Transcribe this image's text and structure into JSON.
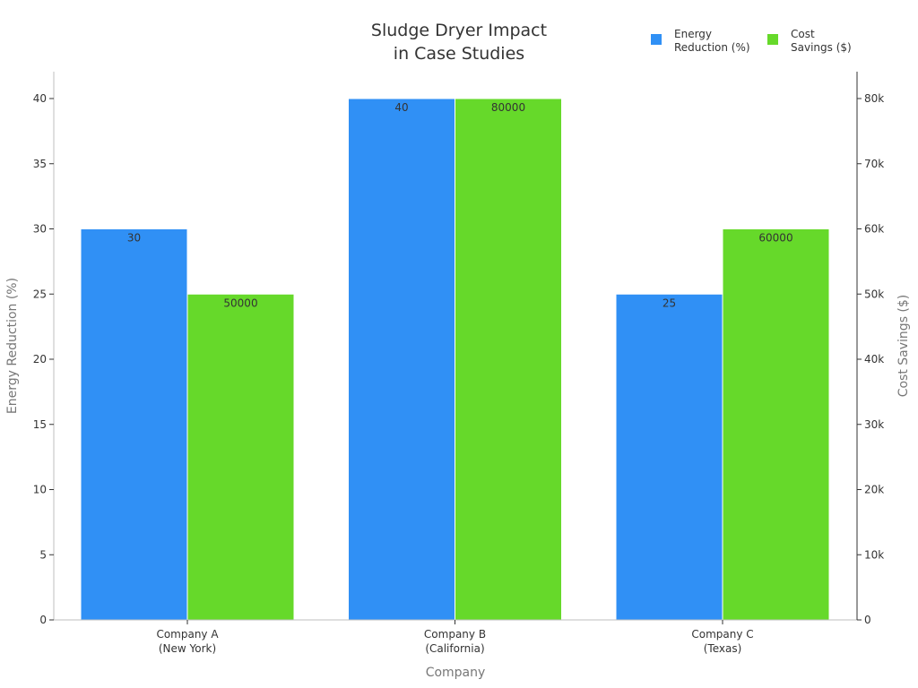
{
  "chart_data": {
    "type": "bar",
    "title_lines": [
      "Sludge Dryer Impact",
      "in Case Studies"
    ],
    "xlabel": "Company",
    "categories": [
      [
        "Company A",
        "(New York)"
      ],
      [
        "Company B",
        "(California)"
      ],
      [
        "Company C",
        "(Texas)"
      ]
    ],
    "series": [
      {
        "name": "Energy Reduction (%)",
        "legend_lines": [
          "Energy",
          "Reduction (%)"
        ],
        "axis": "left",
        "color": "#3090f5",
        "values": [
          30,
          40,
          25
        ]
      },
      {
        "name": "Cost Savings ($)",
        "legend_lines": [
          "Cost",
          "Savings ($)"
        ],
        "axis": "right",
        "color": "#66d92a",
        "values": [
          50000,
          80000,
          60000
        ]
      }
    ],
    "y_left": {
      "label": "Energy Reduction (%)",
      "lim": [
        0,
        42
      ],
      "ticks": [
        0,
        5,
        10,
        15,
        20,
        25,
        30,
        35,
        40
      ],
      "tick_labels": [
        "0",
        "5",
        "10",
        "15",
        "20",
        "25",
        "30",
        "35",
        "40"
      ]
    },
    "y_right": {
      "label": "Cost Savings ($)",
      "lim": [
        0,
        84000
      ],
      "ticks": [
        0,
        10000,
        20000,
        30000,
        40000,
        50000,
        60000,
        70000,
        80000
      ],
      "tick_labels": [
        "0",
        "10k",
        "20k",
        "30k",
        "40k",
        "50k",
        "60k",
        "70k",
        "80k"
      ]
    },
    "grid": false,
    "legend_position": "top-right"
  }
}
